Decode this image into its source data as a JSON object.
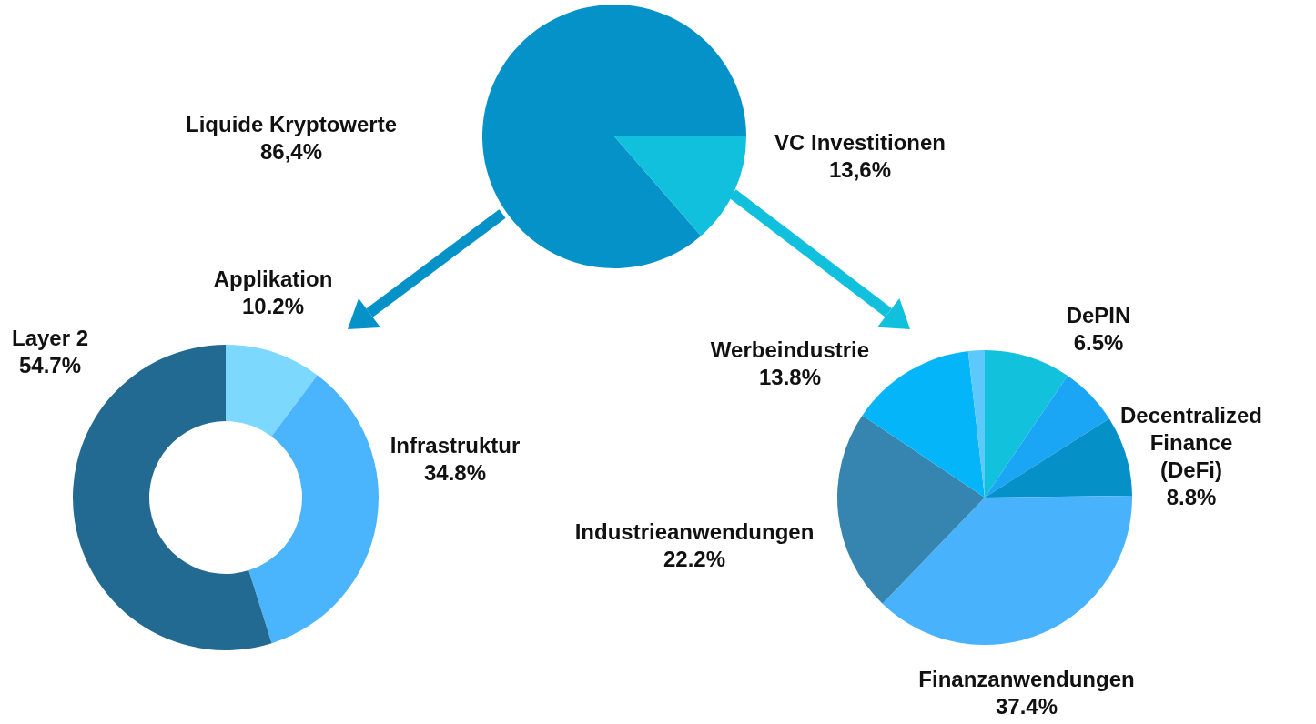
{
  "chart_data": [
    {
      "type": "pie",
      "categories": [
        "Liquide Kryptowerte",
        "VC Investitionen"
      ],
      "values": [
        86.4,
        13.6
      ],
      "colors": [
        "#0592c9",
        "#10c0dc"
      ],
      "value_labels": [
        "86,4%",
        "13,6%"
      ]
    },
    {
      "type": "donut",
      "categories": [
        "Applikation",
        "Infrastruktur",
        "Layer 2"
      ],
      "values": [
        10.2,
        34.8,
        54.7
      ],
      "colors": [
        "#7dd8fd",
        "#4ab4fd",
        "#226a91"
      ],
      "value_labels": [
        "10.2%",
        "34.8%",
        "54.7%"
      ]
    },
    {
      "type": "pie",
      "categories": [
        null,
        "DePIN",
        "Decentralized Finance (DeFi)",
        "Finanzanwendungen",
        "Industrieanwendungen",
        "Werbeindustrie",
        null
      ],
      "values": [
        9.5,
        6.5,
        8.8,
        37.4,
        22.2,
        13.8,
        1.8
      ],
      "colors": [
        "#12c2dc",
        "#1aa5f5",
        "#0591c8",
        "#48b2fd",
        "#3585b0",
        "#04b6f9",
        "#5cc8fb"
      ],
      "value_labels": [
        null,
        "6.5%",
        "8.8%",
        "37.4%",
        "22.2%",
        "13.8%",
        null
      ]
    }
  ]
}
